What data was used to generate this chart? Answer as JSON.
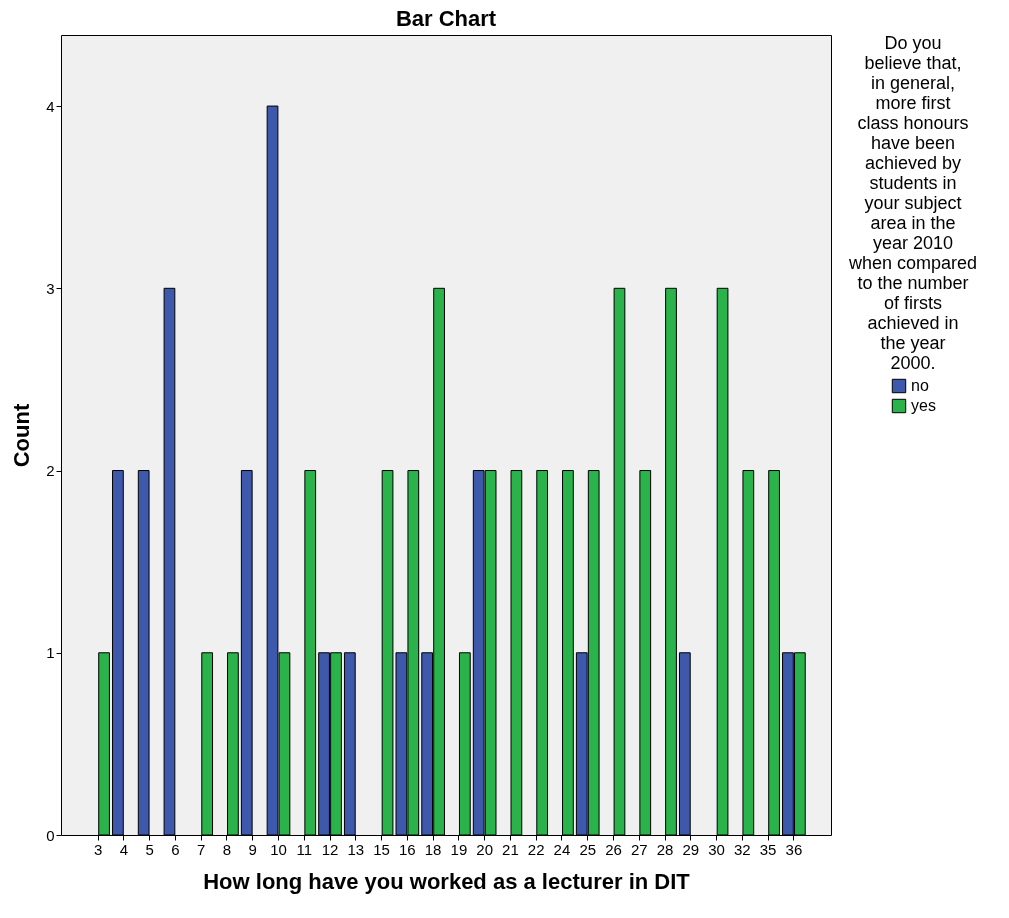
{
  "chart_data": {
    "type": "bar",
    "title": "Bar Chart",
    "xlabel": "How long have you worked as a lecturer in DIT",
    "ylabel": "Count",
    "legend_title": "Do you believe that, in general, more first class honours have been achieved by students in your subject area in the year 2010 when compared to the number of firsts achieved in the year 2000.",
    "categories": [
      "3",
      "4",
      "5",
      "6",
      "7",
      "8",
      "9",
      "10",
      "11",
      "12",
      "13",
      "15",
      "16",
      "18",
      "19",
      "20",
      "21",
      "22",
      "24",
      "25",
      "26",
      "27",
      "28",
      "29",
      "30",
      "32",
      "35",
      "36"
    ],
    "series": [
      {
        "name": "no",
        "color": "#3e58ac",
        "values": [
          null,
          2,
          2,
          3,
          null,
          null,
          2,
          4,
          null,
          1,
          1,
          null,
          1,
          1,
          null,
          2,
          null,
          null,
          null,
          1,
          null,
          null,
          null,
          1,
          null,
          null,
          null,
          1
        ]
      },
      {
        "name": "yes",
        "color": "#2ab34a",
        "values": [
          1,
          null,
          null,
          null,
          1,
          1,
          null,
          1,
          2,
          1,
          null,
          2,
          2,
          3,
          1,
          2,
          2,
          2,
          2,
          2,
          3,
          2,
          3,
          null,
          3,
          2,
          2,
          1
        ]
      }
    ],
    "ylim": [
      0,
      4.39
    ],
    "yticks": [
      0,
      1,
      2,
      3,
      4
    ],
    "grid": false,
    "legend": "right"
  }
}
